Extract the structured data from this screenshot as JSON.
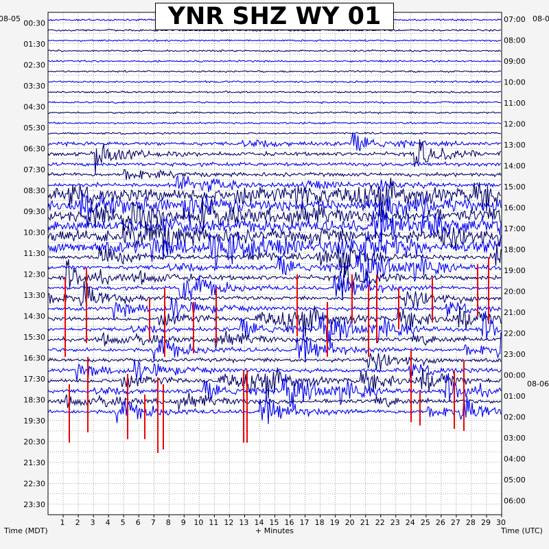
{
  "chart_data": {
    "type": "helicorder",
    "title": "YNR SHZ WY 01",
    "left_axis_label": "Time (MDT)",
    "right_axis_label": "Time (UTC)",
    "bottom_axis_label": "+ Minutes",
    "left_date_label": "08-05",
    "right_date_label": "08-06",
    "left_times": [
      "00:30",
      "01:30",
      "02:30",
      "03:30",
      "04:30",
      "05:30",
      "06:30",
      "07:30",
      "08:30",
      "09:30",
      "10:30",
      "11:30",
      "12:30",
      "13:30",
      "14:30",
      "15:30",
      "16:30",
      "17:30",
      "18:30",
      "19:30",
      "20:30",
      "21:30",
      "22:30",
      "23:30"
    ],
    "right_times": [
      "07:00",
      "08:00",
      "09:00",
      "10:00",
      "11:00",
      "12:00",
      "13:00",
      "14:00",
      "15:00",
      "16:00",
      "17:00",
      "18:00",
      "19:00",
      "20:00",
      "21:00",
      "22:00",
      "23:00",
      "00:00",
      "01:00",
      "02:00",
      "03:00",
      "04:00",
      "05:00",
      "06:00"
    ],
    "minute_ticks": [
      "1",
      "2",
      "3",
      "4",
      "5",
      "6",
      "7",
      "8",
      "9",
      "10",
      "11",
      "12",
      "13",
      "14",
      "15",
      "16",
      "17",
      "18",
      "19",
      "20",
      "21",
      "22",
      "23",
      "24",
      "25",
      "26",
      "27",
      "28",
      "29",
      "30"
    ],
    "x_range_minutes": [
      0,
      30
    ],
    "trace_count": 39,
    "grid": true,
    "colors": {
      "trace_blue": "#0000ee",
      "trace_navy": "#000066",
      "clipped": "#ee0000",
      "grid": "#555555"
    }
  }
}
